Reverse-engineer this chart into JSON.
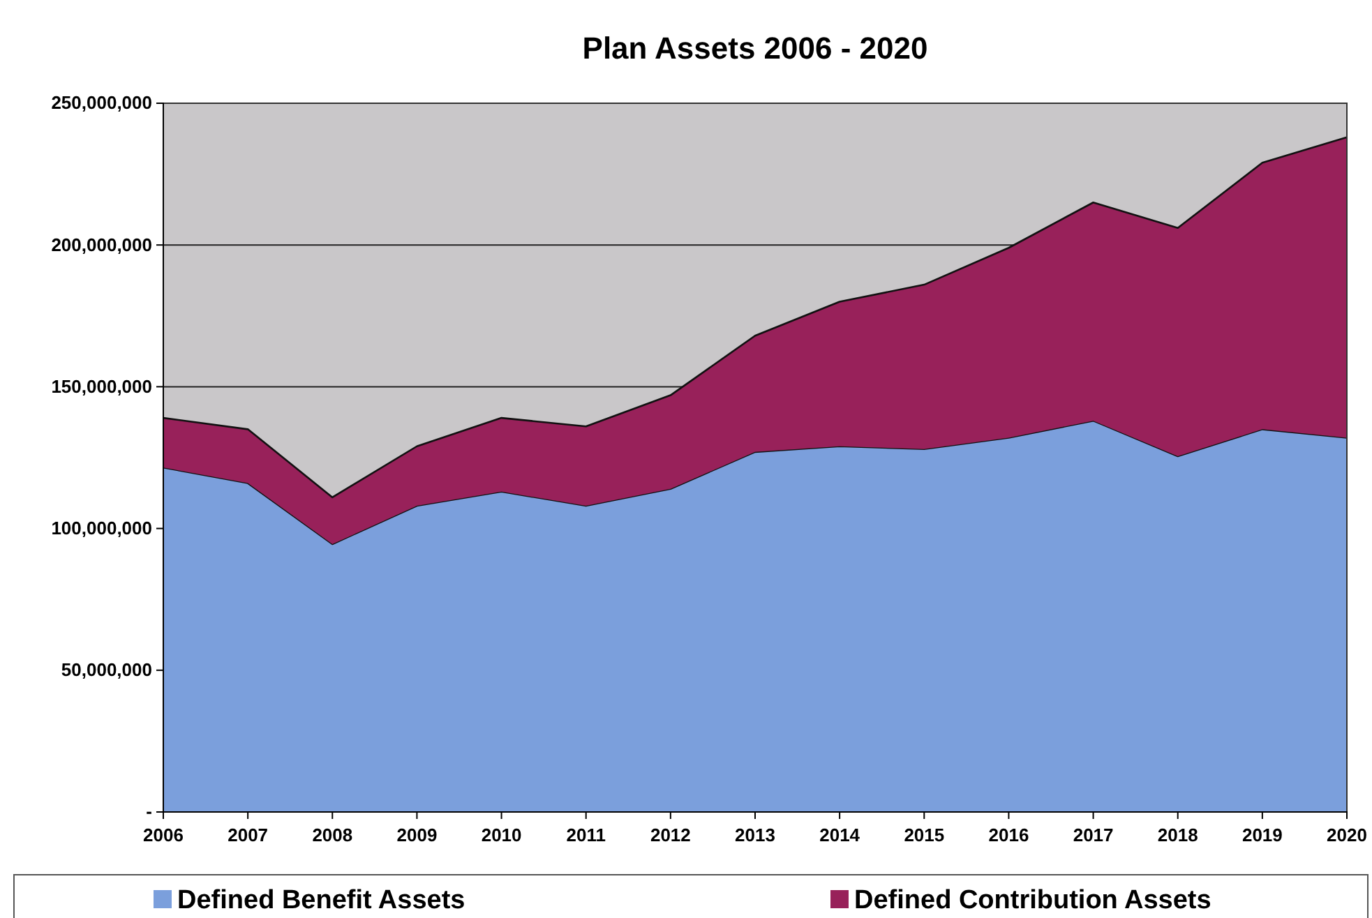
{
  "chart_data": {
    "type": "area",
    "stacked": true,
    "title": "Plan Assets 2006 - 2020",
    "categories": [
      "2006",
      "2007",
      "2008",
      "2009",
      "2010",
      "2011",
      "2012",
      "2013",
      "2014",
      "2015",
      "2016",
      "2017",
      "2018",
      "2019",
      "2020"
    ],
    "series": [
      {
        "name": "Defined Benefit Assets",
        "color": "#7b9fdc",
        "values": [
          121500000,
          116000000,
          94500000,
          108000000,
          113000000,
          108000000,
          114000000,
          127000000,
          129000000,
          128000000,
          132000000,
          138000000,
          125500000,
          135000000,
          132000000
        ]
      },
      {
        "name": "Defined Contribution Assets",
        "color": "#98215a",
        "values": [
          17500000,
          19000000,
          16500000,
          21000000,
          26000000,
          28000000,
          33000000,
          41000000,
          51000000,
          58000000,
          67000000,
          77000000,
          80500000,
          94000000,
          106000000
        ]
      }
    ],
    "ylim": [
      0,
      250000000
    ],
    "yticks": [
      {
        "value": 0,
        "label": "-"
      },
      {
        "value": 50000000,
        "label": "50,000,000"
      },
      {
        "value": 100000000,
        "label": "100,000,000"
      },
      {
        "value": 150000000,
        "label": "150,000,000"
      },
      {
        "value": 200000000,
        "label": "200,000,000"
      },
      {
        "value": 250000000,
        "label": "250,000,000"
      }
    ],
    "grid": "y",
    "legend": "bottom"
  }
}
